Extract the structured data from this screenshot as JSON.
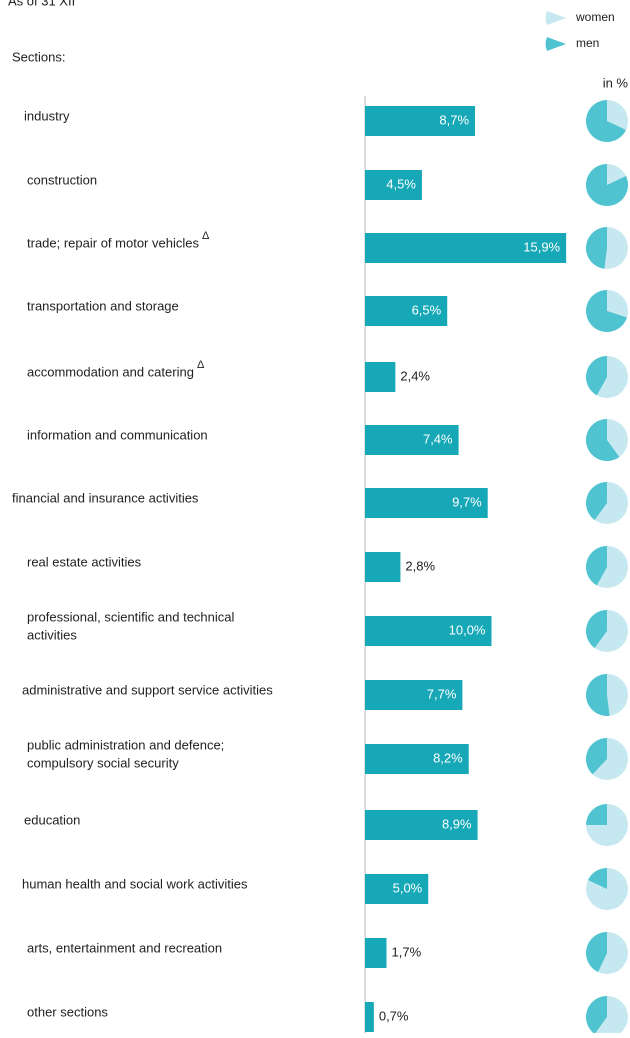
{
  "chart_data": {
    "type": "bar",
    "orientation": "horizontal",
    "subtitle": "As of 31 XII",
    "categories_title": "Sections:",
    "pie_unit": "in %",
    "categories": [
      [
        "industry"
      ],
      [
        "construction"
      ],
      [
        "trade; repair of motor vehicles"
      ],
      [
        "transportation and storage"
      ],
      [
        "accommodation and catering"
      ],
      [
        "information and communication"
      ],
      [
        "financial and insurance activities"
      ],
      [
        "real estate activities"
      ],
      [
        "professional, scientific and technical",
        "activities"
      ],
      [
        "administrative and support service activities"
      ],
      [
        "public administration and defence;",
        "compulsory social security"
      ],
      [
        "education"
      ],
      [
        "human health and social work activities"
      ],
      [
        "arts, entertainment and recreation"
      ],
      [
        "other sections"
      ]
    ],
    "category_marks": [
      null,
      null,
      "Δ",
      null,
      "Δ",
      null,
      null,
      null,
      null,
      null,
      null,
      null,
      null,
      null,
      null
    ],
    "values": [
      8.7,
      4.5,
      15.9,
      6.5,
      2.4,
      7.4,
      9.7,
      2.8,
      10.0,
      7.7,
      8.2,
      8.9,
      5.0,
      1.7,
      0.7
    ],
    "value_labels": [
      "8,7%",
      "4,5%",
      "15,9%",
      "6,5%",
      "2,4%",
      "7,4%",
      "9,7%",
      "2,8%",
      "10,0%",
      "7,7%",
      "8,2%",
      "8,9%",
      "5,0%",
      "1,7%",
      "0,7%"
    ],
    "color": "#17a8b8",
    "pie_series": [
      {
        "name": "women",
        "color": "#c6e9f1"
      },
      {
        "name": "men",
        "color": "#4fc3cf",
        "values": [
          68,
          82,
          48,
          70,
          42,
          60,
          40,
          42,
          40,
          52,
          38,
          25,
          18,
          43,
          40
        ]
      }
    ]
  }
}
